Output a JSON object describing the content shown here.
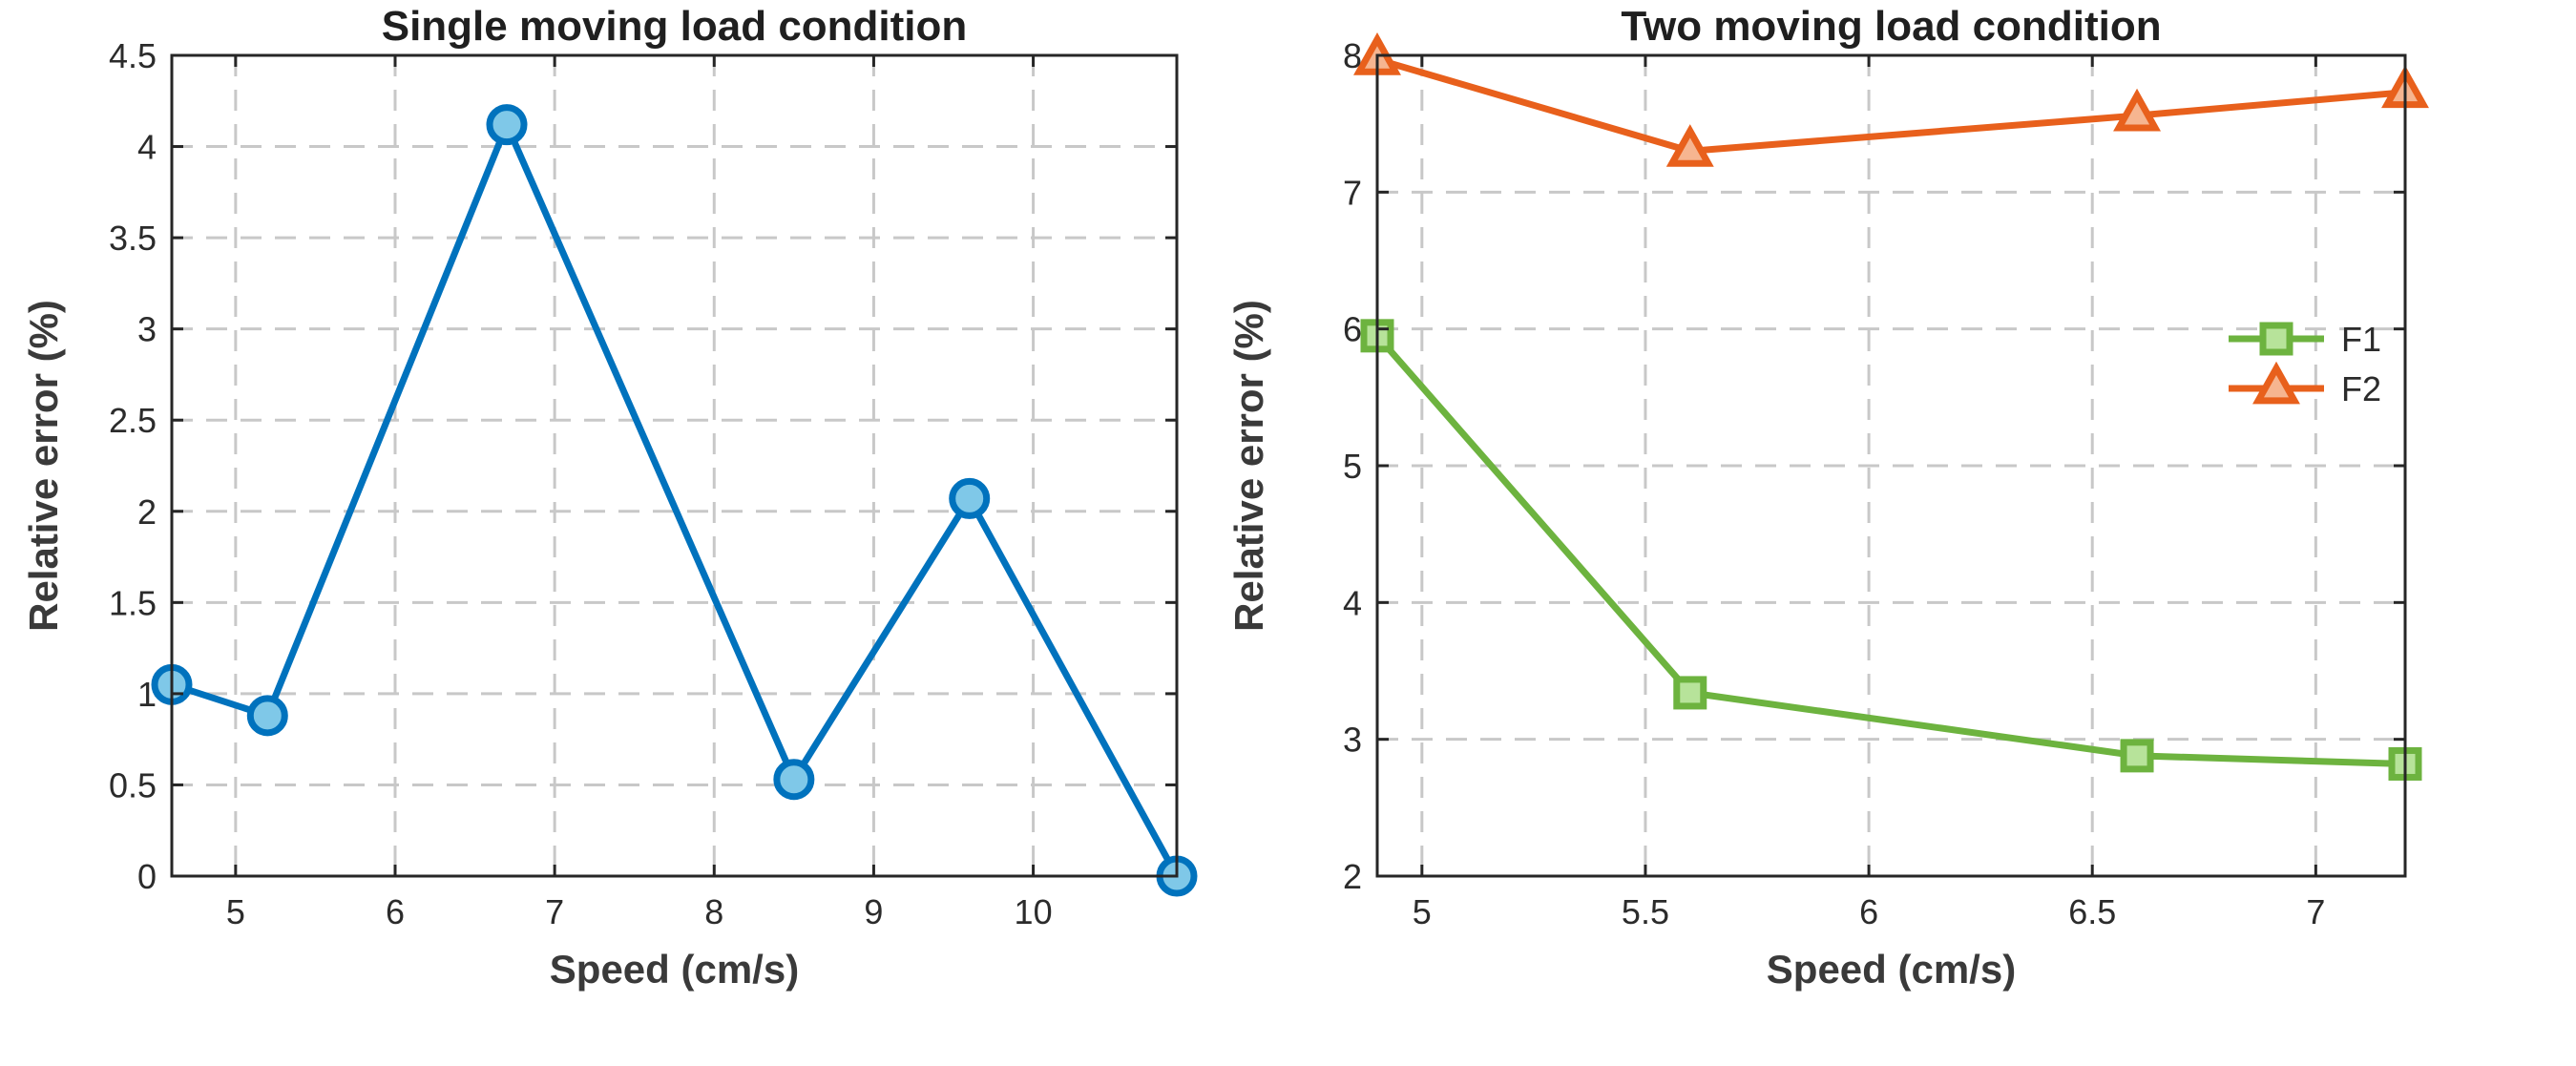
{
  "chart_data": [
    {
      "type": "line",
      "title": "Single moving load condition",
      "xlabel": "Speed (cm/s)",
      "ylabel": "Relative error (%)",
      "xlim": [
        4.6,
        10.9
      ],
      "ylim": [
        0,
        4.5
      ],
      "xticks": [
        5,
        6,
        7,
        8,
        9,
        10
      ],
      "yticks": [
        0,
        0.5,
        1,
        1.5,
        2,
        2.5,
        3,
        3.5,
        4,
        4.5
      ],
      "grid": true,
      "series": [
        {
          "color": "#0072BD",
          "marker_fill": "#7fc8e8",
          "marker": "circle",
          "x": [
            4.6,
            5.2,
            6.7,
            8.5,
            9.6,
            10.9
          ],
          "y": [
            1.05,
            0.88,
            4.12,
            0.53,
            2.07,
            0.0
          ]
        }
      ]
    },
    {
      "type": "line",
      "title": "Two moving load condition",
      "xlabel": "Speed (cm/s)",
      "ylabel": "Relative error (%)",
      "xlim": [
        4.9,
        7.2
      ],
      "ylim": [
        2,
        8
      ],
      "xticks": [
        5,
        5.5,
        6,
        6.5,
        7
      ],
      "yticks": [
        2,
        3,
        4,
        5,
        6,
        7,
        8
      ],
      "grid": true,
      "legend": "right",
      "series": [
        {
          "name": "F1",
          "color": "#6DB33F",
          "marker_fill": "#b7e39a",
          "marker": "square",
          "x": [
            4.9,
            5.6,
            6.6,
            7.2
          ],
          "y": [
            5.95,
            3.34,
            2.88,
            2.82
          ]
        },
        {
          "name": "F2",
          "color": "#E8601C",
          "marker_fill": "#f6b590",
          "marker": "triangle",
          "x": [
            4.9,
            5.6,
            6.6,
            7.2
          ],
          "y": [
            7.97,
            7.3,
            7.56,
            7.73
          ]
        }
      ]
    }
  ]
}
